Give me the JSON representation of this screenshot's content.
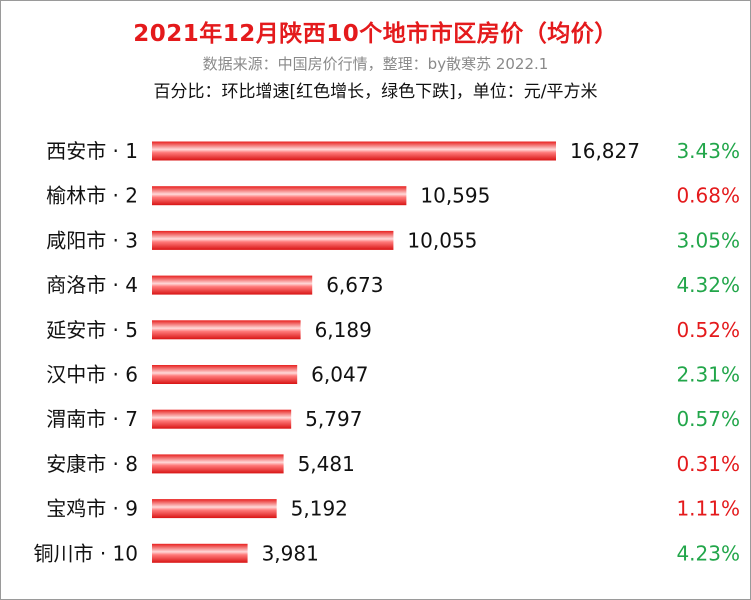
{
  "header": {
    "title": "2021年12月陕西10个地市市区房价（均价）",
    "source": "数据来源：中国房价行情，整理：by散寒苏  2022.1",
    "note": "百分比：环比增速[红色增长，绿色下跌]，单位：元/平方米"
  },
  "colors": {
    "title": "#e41a1c",
    "bar": "#e8201f",
    "bar_highlight": "#ffd9d9",
    "increase": "#e41a1c",
    "decrease": "#22a64a"
  },
  "chart_data": {
    "type": "bar",
    "orientation": "horizontal",
    "categories": [
      "西安市 · 1",
      "榆林市 · 2",
      "咸阳市 · 3",
      "商洛市 · 4",
      "延安市 · 5",
      "汉中市 · 6",
      "渭南市 · 7",
      "安康市 · 8",
      "宝鸡市 · 9",
      "铜川市 · 10"
    ],
    "values": [
      16827,
      10595,
      10055,
      6673,
      6189,
      6047,
      5797,
      5481,
      5192,
      3981
    ],
    "value_labels": [
      "16,827",
      "10,595",
      "10,055",
      "6,673",
      "6,189",
      "6,047",
      "5,797",
      "5,481",
      "5,192",
      "3,981"
    ],
    "change_labels": [
      "3.43%",
      "0.68%",
      "3.05%",
      "4.32%",
      "0.52%",
      "2.31%",
      "0.57%",
      "0.31%",
      "1.11%",
      "4.23%"
    ],
    "change_direction": [
      "down",
      "up",
      "down",
      "down",
      "up",
      "down",
      "down",
      "up",
      "up",
      "down"
    ],
    "xlim": [
      0,
      16827
    ],
    "grid": false,
    "legend": "none"
  }
}
